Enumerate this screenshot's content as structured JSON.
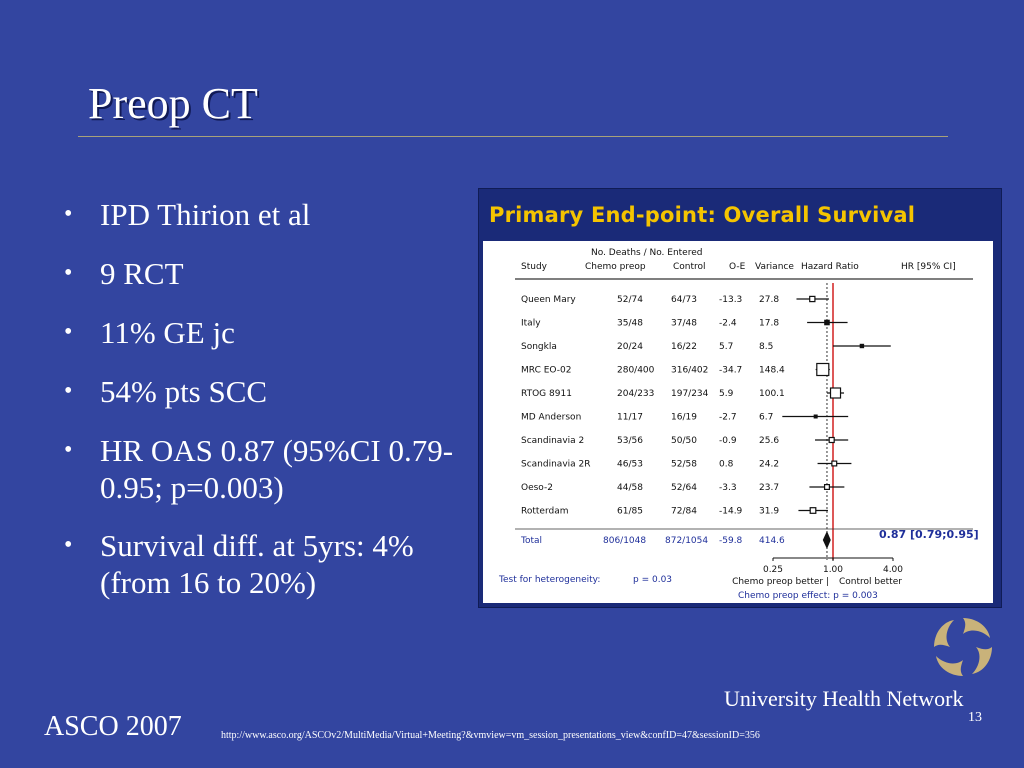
{
  "slide": {
    "title": "Preop CT",
    "bullets": [
      "IPD Thirion et al",
      "9 RCT",
      "11% GE jc",
      "54% pts SCC",
      "HR OAS 0.87 (95%CI 0.79-0.95; p=0.003)",
      "Survival diff. at 5yrs: 4% (from 16 to 20%)"
    ],
    "footer_left": "ASCO 2007",
    "footer_url": "http://www.asco.org/ASCOv2/MultiMedia/Virtual+Meeting?&vmview=vm_session_presentations_view&confID=47&sessionID=356",
    "page_number": "13",
    "org_name": "University Health Network",
    "colors": {
      "background": "#3345a0",
      "figure_title": "#f5c400",
      "figure_text_blue": "#1f2f9a",
      "reference_line": "#d22020",
      "logo_gold": "#c9b27a"
    }
  },
  "chart_data": {
    "type": "forest",
    "title": "Primary End-point: Overall Survival",
    "header_group": "No. Deaths / No. Entered",
    "columns": [
      "Study",
      "Chemo preop",
      "Control",
      "O-E",
      "Variance",
      "Hazard Ratio",
      "HR [95% CI]"
    ],
    "studies": [
      {
        "name": "Queen Mary",
        "chemo": "52/74",
        "control": "64/73",
        "oe": "-13.3",
        "variance": "27.8",
        "hr": 0.62,
        "lo": 0.43,
        "hi": 0.91,
        "size": 2.6
      },
      {
        "name": "Italy",
        "chemo": "35/48",
        "control": "37/48",
        "oe": "-2.4",
        "variance": "17.8",
        "hr": 0.87,
        "lo": 0.55,
        "hi": 1.4,
        "size": 2.2
      },
      {
        "name": "Songkla",
        "chemo": "20/24",
        "control": "16/22",
        "oe": "5.7",
        "variance": "8.5",
        "hr": 1.95,
        "lo": 1.0,
        "hi": 3.8,
        "size": 1.6
      },
      {
        "name": "MRC EO-02",
        "chemo": "280/400",
        "control": "316/402",
        "oe": "-34.7",
        "variance": "148.4",
        "hr": 0.79,
        "lo": 0.67,
        "hi": 0.93,
        "size": 6.0
      },
      {
        "name": "RTOG 8911",
        "chemo": "204/233",
        "control": "197/234",
        "oe": "5.9",
        "variance": "100.1",
        "hr": 1.06,
        "lo": 0.87,
        "hi": 1.29,
        "size": 5.0
      },
      {
        "name": "MD Anderson",
        "chemo": "11/17",
        "control": "16/19",
        "oe": "-2.7",
        "variance": "6.7",
        "hr": 0.67,
        "lo": 0.31,
        "hi": 1.42,
        "size": 1.4
      },
      {
        "name": "Scandinavia 2",
        "chemo": "53/56",
        "control": "50/50",
        "oe": "-0.9",
        "variance": "25.6",
        "hr": 0.97,
        "lo": 0.66,
        "hi": 1.42,
        "size": 2.5
      },
      {
        "name": "Scandinavia 2R",
        "chemo": "46/53",
        "control": "52/58",
        "oe": "0.8",
        "variance": "24.2",
        "hr": 1.03,
        "lo": 0.7,
        "hi": 1.53,
        "size": 2.4
      },
      {
        "name": "Oeso-2",
        "chemo": "44/58",
        "control": "52/64",
        "oe": "-3.3",
        "variance": "23.7",
        "hr": 0.87,
        "lo": 0.58,
        "hi": 1.3,
        "size": 2.4
      },
      {
        "name": "Rotterdam",
        "chemo": "61/85",
        "control": "72/84",
        "oe": "-14.9",
        "variance": "31.9",
        "hr": 0.63,
        "lo": 0.45,
        "hi": 0.89,
        "size": 2.8
      }
    ],
    "total": {
      "name": "Total",
      "chemo": "806/1048",
      "control": "872/1054",
      "oe": "-59.8",
      "variance": "414.6",
      "hr": 0.87,
      "lo": 0.79,
      "hi": 0.95,
      "label": "0.87 [0.79;0.95]"
    },
    "x_axis": {
      "scale": "log",
      "ticks": [
        0.25,
        1.0,
        4.0
      ],
      "tick_labels": [
        "0.25",
        "1.00",
        "4.00"
      ],
      "range": [
        0.25,
        4.0
      ]
    },
    "favour_left": "Chemo preop better",
    "favour_right": "Control better",
    "heterogeneity": "Test for heterogeneity:",
    "heterogeneity_p": "p = 0.03",
    "effect": "Chemo preop effect: p = 0.003"
  }
}
